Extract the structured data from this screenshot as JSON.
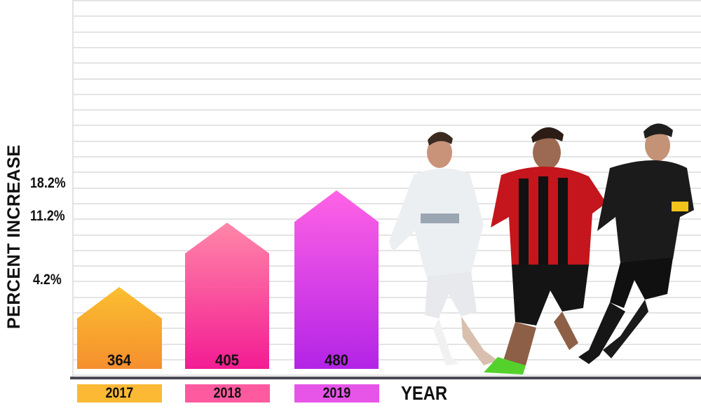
{
  "chart_data": {
    "type": "bar",
    "categories": [
      "2017",
      "2018",
      "2019"
    ],
    "values": [
      364,
      405,
      480
    ],
    "percent_increase_labels": [
      "4.2%",
      "11.2%",
      "18.2%"
    ],
    "ylabel": "PERCENT INCREASE",
    "xlabel": "YEAR",
    "grid": true,
    "colors": {
      "2017": [
        "#fbbf30",
        "#f58f2e"
      ],
      "2018": [
        "#ff87a8",
        "#f31c93"
      ],
      "2019": [
        "#ff63e5",
        "#b323e6"
      ]
    },
    "tag_colors": [
      "#fbb934",
      "#fd5a9f",
      "#e655e8"
    ]
  }
}
